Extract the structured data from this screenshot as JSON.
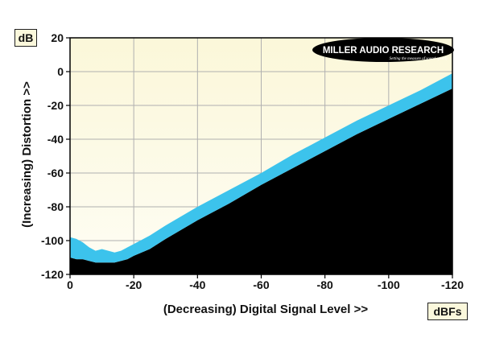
{
  "chart_data": {
    "type": "area",
    "xlabel": "(Decreasing) Digital Signal Level >>",
    "ylabel": "(Increasing) Distortion >>",
    "x_unit": "dBFs",
    "y_unit": "dB",
    "xlim": [
      0,
      -120
    ],
    "ylim": [
      -120,
      20
    ],
    "x_ticks": [
      0,
      -20,
      -40,
      -60,
      -80,
      -100,
      -120
    ],
    "y_ticks": [
      20,
      0,
      -20,
      -40,
      -60,
      -80,
      -100,
      -120
    ],
    "x_tick_labels": [
      "0",
      "-20",
      "-40",
      "-60",
      "-80",
      "-100",
      "-120"
    ],
    "y_tick_labels": [
      "20",
      "0",
      "-20",
      "-40",
      "-60",
      "-80",
      "-100",
      "-120"
    ],
    "grid": true,
    "series": [
      {
        "x": [
          0,
          -2,
          -4,
          -6,
          -8,
          -10,
          -12,
          -14,
          -16,
          -18,
          -20,
          -25,
          -30,
          -40,
          -50,
          -60,
          -70,
          -80,
          -90,
          -100,
          -110,
          -120
        ],
        "upper": [
          -98,
          -99,
          -101,
          -104,
          -106,
          -105,
          -106,
          -107,
          -106,
          -104,
          -102,
          -97,
          -91,
          -80,
          -70,
          -60,
          -49,
          -39,
          -29,
          -20,
          -11,
          -1
        ],
        "lower": [
          -110,
          -111,
          -111,
          -112,
          -113,
          -113,
          -113,
          -113,
          -112,
          -111,
          -109,
          -105,
          -99,
          -88,
          -78,
          -67,
          -57,
          -47,
          -37,
          -28,
          -19,
          -10
        ],
        "color": "#3cc3ec"
      }
    ],
    "floor_color": "#000000",
    "background_color": "#fbf8dc"
  },
  "logo": {
    "name": "MILLER AUDIO RESEARCH",
    "tagline": "Setting the measure of sound quality"
  }
}
